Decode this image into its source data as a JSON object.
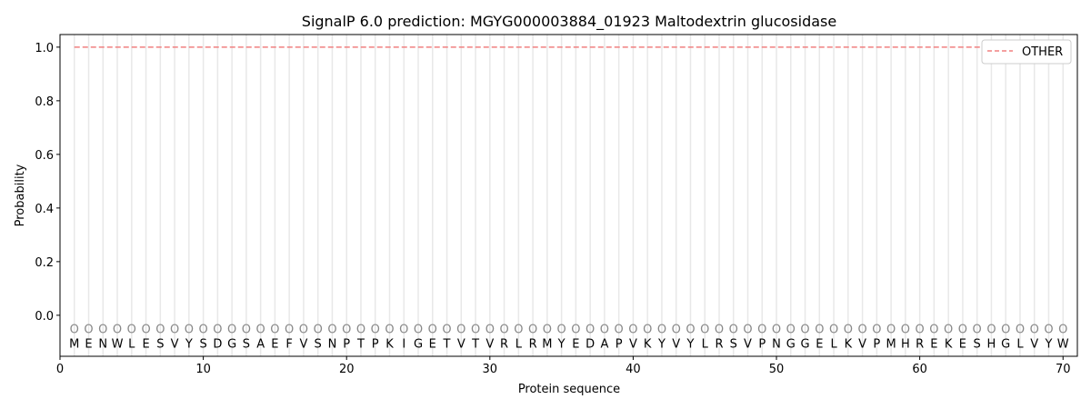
{
  "chart_data": {
    "type": "line",
    "title": "SignalP 6.0 prediction: MGYG000003884_01923 Maltodextrin glucosidase",
    "xlabel": "Protein sequence",
    "ylabel": "Probability",
    "xlim": [
      0,
      71
    ],
    "ylim": [
      -0.153,
      1.047
    ],
    "xticks": [
      0,
      10,
      20,
      30,
      40,
      50,
      60,
      70
    ],
    "yticks": [
      0.0,
      0.2,
      0.4,
      0.6,
      0.8,
      1.0
    ],
    "grid": "vertical lines at each residue",
    "legend_position": "top-right",
    "sequence": [
      "M",
      "E",
      "N",
      "W",
      "L",
      "E",
      "S",
      "V",
      "Y",
      "S",
      "D",
      "G",
      "S",
      "A",
      "E",
      "F",
      "V",
      "S",
      "N",
      "P",
      "T",
      "P",
      "K",
      "I",
      "G",
      "E",
      "T",
      "V",
      "T",
      "V",
      "R",
      "L",
      "R",
      "M",
      "Y",
      "E",
      "D",
      "A",
      "P",
      "V",
      "K",
      "Y",
      "V",
      "Y",
      "L",
      "R",
      "S",
      "V",
      "P",
      "N",
      "G",
      "G",
      "E",
      "L",
      "K",
      "V",
      "P",
      "M",
      "H",
      "R",
      "E",
      "K",
      "E",
      "S",
      "H",
      "G",
      "L",
      "V",
      "Y",
      "W"
    ],
    "predicted_label": "O",
    "series": [
      {
        "name": "OTHER",
        "color": "#f08080",
        "style": "dashed",
        "x_range": [
          1,
          70
        ],
        "value": 1.0
      }
    ]
  }
}
